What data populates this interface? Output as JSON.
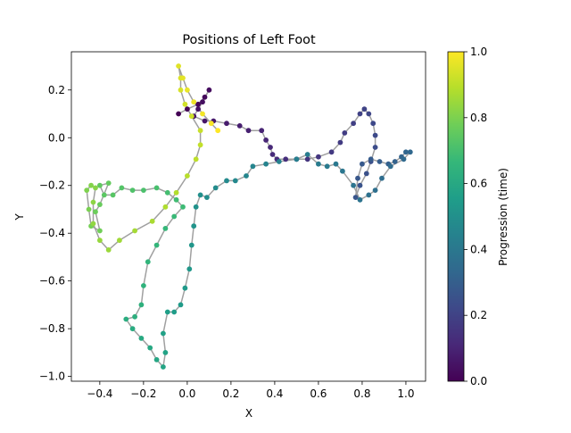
{
  "chart_data": {
    "type": "scatter",
    "title": "Positions of Left Foot",
    "xlabel": "X",
    "ylabel": "Y",
    "xlim": [
      -0.53,
      1.09
    ],
    "ylim": [
      -1.02,
      0.36
    ],
    "xticks": [
      -0.4,
      -0.2,
      0.0,
      0.2,
      0.4,
      0.6,
      0.8,
      1.0
    ],
    "xtick_labels": [
      "−0.4",
      "−0.2",
      "0.0",
      "0.2",
      "0.4",
      "0.6",
      "0.8",
      "1.0"
    ],
    "yticks": [
      -1.0,
      -0.8,
      -0.6,
      -0.4,
      -0.2,
      0.0,
      0.2
    ],
    "ytick_labels": [
      "−1.0",
      "−0.8",
      "−0.6",
      "−0.4",
      "−0.2",
      "0.0",
      "0.2"
    ],
    "grid": false,
    "connecting_line_color": "#a0a0a0",
    "colormap": "viridis",
    "colormap_stops": [
      "#440154",
      "#482878",
      "#3e4989",
      "#31688e",
      "#26828e",
      "#1f9e89",
      "#35b779",
      "#6ece58",
      "#b5de2b",
      "#fde725"
    ],
    "colorbar": {
      "label": "Progression (time)",
      "range": [
        0.0,
        1.0
      ],
      "ticks": [
        0.0,
        0.2,
        0.4,
        0.6,
        0.8,
        1.0
      ],
      "tick_labels": [
        "0.0",
        "0.2",
        "0.4",
        "0.6",
        "0.8",
        "1.0"
      ]
    },
    "path_points": [
      [
        -0.04,
        0.1
      ],
      [
        0.0,
        0.12
      ],
      [
        0.05,
        0.14
      ],
      [
        0.08,
        0.17
      ],
      [
        0.1,
        0.2
      ],
      [
        0.07,
        0.15
      ],
      [
        0.05,
        0.12
      ],
      [
        0.03,
        0.09
      ],
      [
        0.08,
        0.07
      ],
      [
        0.12,
        0.07
      ],
      [
        0.18,
        0.06
      ],
      [
        0.24,
        0.05
      ],
      [
        0.28,
        0.03
      ],
      [
        0.34,
        0.03
      ],
      [
        0.36,
        -0.01
      ],
      [
        0.38,
        -0.04
      ],
      [
        0.39,
        -0.07
      ],
      [
        0.41,
        -0.09
      ],
      [
        0.45,
        -0.09
      ],
      [
        0.5,
        -0.09
      ],
      [
        0.55,
        -0.09
      ],
      [
        0.6,
        -0.08
      ],
      [
        0.66,
        -0.06
      ],
      [
        0.7,
        -0.02
      ],
      [
        0.72,
        0.02
      ],
      [
        0.76,
        0.06
      ],
      [
        0.79,
        0.1
      ],
      [
        0.81,
        0.12
      ],
      [
        0.83,
        0.1
      ],
      [
        0.85,
        0.06
      ],
      [
        0.86,
        0.01
      ],
      [
        0.86,
        -0.04
      ],
      [
        0.84,
        -0.1
      ],
      [
        0.82,
        -0.15
      ],
      [
        0.79,
        -0.2
      ],
      [
        0.77,
        -0.25
      ],
      [
        0.78,
        -0.17
      ],
      [
        0.8,
        -0.11
      ],
      [
        0.84,
        -0.09
      ],
      [
        0.88,
        -0.1
      ],
      [
        0.92,
        -0.11
      ],
      [
        0.95,
        -0.1
      ],
      [
        0.98,
        -0.08
      ],
      [
        1.0,
        -0.06
      ],
      [
        1.02,
        -0.06
      ],
      [
        0.99,
        -0.09
      ],
      [
        0.93,
        -0.12
      ],
      [
        0.89,
        -0.17
      ],
      [
        0.86,
        -0.22
      ],
      [
        0.83,
        -0.24
      ],
      [
        0.79,
        -0.26
      ],
      [
        0.76,
        -0.2
      ],
      [
        0.71,
        -0.14
      ],
      [
        0.68,
        -0.11
      ],
      [
        0.64,
        -0.12
      ],
      [
        0.6,
        -0.11
      ],
      [
        0.55,
        -0.07
      ],
      [
        0.5,
        -0.09
      ],
      [
        0.42,
        -0.1
      ],
      [
        0.36,
        -0.11
      ],
      [
        0.3,
        -0.12
      ],
      [
        0.27,
        -0.16
      ],
      [
        0.22,
        -0.18
      ],
      [
        0.18,
        -0.18
      ],
      [
        0.13,
        -0.21
      ],
      [
        0.09,
        -0.25
      ],
      [
        0.06,
        -0.24
      ],
      [
        0.04,
        -0.29
      ],
      [
        0.03,
        -0.37
      ],
      [
        0.02,
        -0.45
      ],
      [
        0.01,
        -0.55
      ],
      [
        -0.01,
        -0.63
      ],
      [
        -0.03,
        -0.7
      ],
      [
        -0.06,
        -0.73
      ],
      [
        -0.09,
        -0.73
      ],
      [
        -0.11,
        -0.82
      ],
      [
        -0.1,
        -0.9
      ],
      [
        -0.11,
        -0.96
      ],
      [
        -0.14,
        -0.93
      ],
      [
        -0.17,
        -0.88
      ],
      [
        -0.21,
        -0.84
      ],
      [
        -0.25,
        -0.8
      ],
      [
        -0.28,
        -0.76
      ],
      [
        -0.24,
        -0.75
      ],
      [
        -0.21,
        -0.7
      ],
      [
        -0.2,
        -0.62
      ],
      [
        -0.18,
        -0.52
      ],
      [
        -0.14,
        -0.45
      ],
      [
        -0.1,
        -0.38
      ],
      [
        -0.06,
        -0.33
      ],
      [
        -0.02,
        -0.29
      ],
      [
        -0.05,
        -0.26
      ],
      [
        -0.09,
        -0.23
      ],
      [
        -0.14,
        -0.21
      ],
      [
        -0.2,
        -0.22
      ],
      [
        -0.25,
        -0.22
      ],
      [
        -0.3,
        -0.21
      ],
      [
        -0.34,
        -0.24
      ],
      [
        -0.38,
        -0.24
      ],
      [
        -0.4,
        -0.2
      ],
      [
        -0.36,
        -0.19
      ],
      [
        -0.4,
        -0.28
      ],
      [
        -0.42,
        -0.31
      ],
      [
        -0.4,
        -0.39
      ],
      [
        -0.44,
        -0.37
      ],
      [
        -0.45,
        -0.3
      ],
      [
        -0.46,
        -0.22
      ],
      [
        -0.44,
        -0.2
      ],
      [
        -0.42,
        -0.21
      ],
      [
        -0.43,
        -0.27
      ],
      [
        -0.43,
        -0.36
      ],
      [
        -0.4,
        -0.43
      ],
      [
        -0.36,
        -0.47
      ],
      [
        -0.31,
        -0.43
      ],
      [
        -0.24,
        -0.39
      ],
      [
        -0.16,
        -0.35
      ],
      [
        -0.1,
        -0.29
      ],
      [
        -0.05,
        -0.23
      ],
      [
        0.0,
        -0.16
      ],
      [
        0.04,
        -0.09
      ],
      [
        0.06,
        -0.03
      ],
      [
        0.06,
        0.03
      ],
      [
        0.02,
        0.09
      ],
      [
        -0.01,
        0.14
      ],
      [
        -0.03,
        0.2
      ],
      [
        -0.03,
        0.25
      ],
      [
        -0.04,
        0.3
      ],
      [
        -0.02,
        0.25
      ],
      [
        0.0,
        0.2
      ],
      [
        0.03,
        0.15
      ],
      [
        0.07,
        0.1
      ],
      [
        0.11,
        0.06
      ],
      [
        0.14,
        0.03
      ]
    ]
  }
}
